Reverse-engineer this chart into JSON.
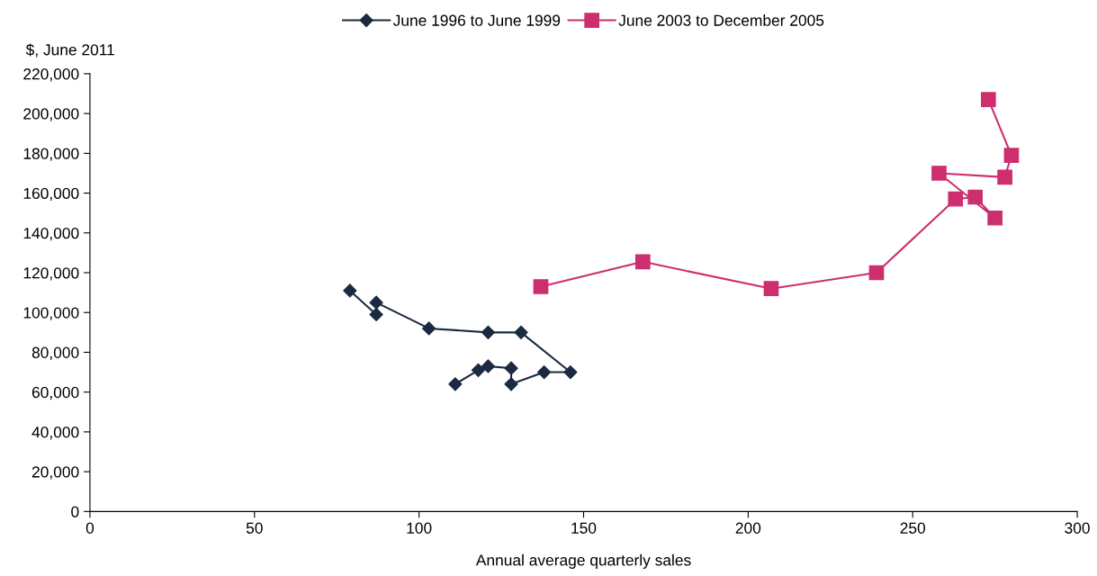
{
  "chart_data": {
    "type": "line",
    "xlabel": "Annual average quarterly sales",
    "ylabel": "$, June 2011",
    "legend": "top",
    "grid": false,
    "line_style": "solid",
    "xlim": [
      0,
      300
    ],
    "xticks": [
      0,
      50,
      100,
      150,
      200,
      250,
      300
    ],
    "ylim": [
      0,
      220000
    ],
    "yticks": [
      0,
      {
        "value": 20000,
        "label": "20,000"
      },
      {
        "value": 40000,
        "label": "40,000"
      },
      {
        "value": 60000,
        "label": "60,000"
      },
      {
        "value": 80000,
        "label": "80,000"
      },
      {
        "value": 100000,
        "label": "100,000"
      },
      {
        "value": 120000,
        "label": "120,000"
      },
      {
        "value": 140000,
        "label": "140,000"
      },
      {
        "value": 160000,
        "label": "160,000"
      },
      {
        "value": 180000,
        "label": "180,000"
      },
      {
        "value": 200000,
        "label": "200,000"
      },
      {
        "value": 220000,
        "label": "220,000"
      }
    ],
    "series": [
      {
        "name": "June 1996 to June 1999",
        "color": "#1a2a40",
        "marker": "diamond",
        "x": [
          79,
          87,
          87,
          103,
          121,
          131,
          146,
          138,
          128,
          128,
          121,
          118,
          111
        ],
        "values": [
          111000,
          99000,
          105000,
          92000,
          90000,
          90000,
          70000,
          70000,
          64000,
          72000,
          73000,
          71000,
          64000
        ]
      },
      {
        "name": "June 2003 to December 2005",
        "color": "#cc2e6e",
        "marker": "square",
        "x": [
          137,
          168,
          207,
          239,
          263,
          269,
          275,
          258,
          278,
          280,
          273
        ],
        "values": [
          113000,
          125500,
          112000,
          120000,
          157000,
          158000,
          147500,
          170000,
          168000,
          179000,
          207000
        ]
      }
    ]
  }
}
